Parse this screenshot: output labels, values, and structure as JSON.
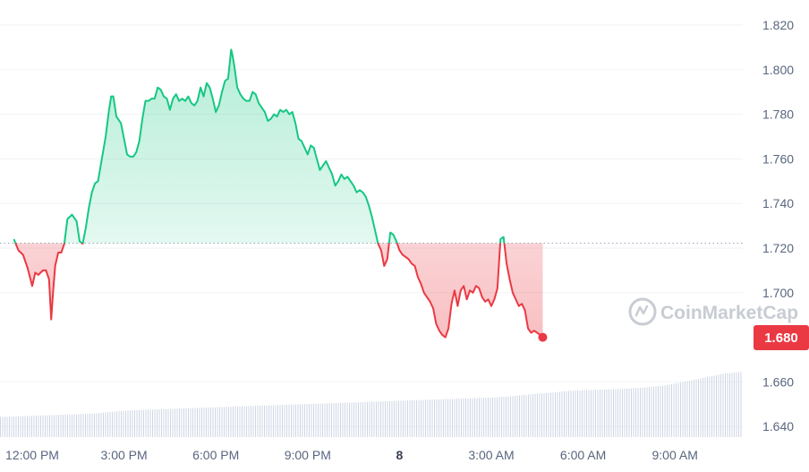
{
  "brand": "CoinMarketCap",
  "colors": {
    "up": "#16c784",
    "down": "#ea3943",
    "grid": "#eff2f5",
    "axis_text": "#58667e",
    "volume": "#cfd6e4"
  },
  "chart_data": {
    "type": "area",
    "baseline": 1.7222,
    "current_price_label": "1.680",
    "ylim": [
      1.632,
      1.83
    ],
    "y_ticks": [
      {
        "value": 1.82,
        "label": "1.820"
      },
      {
        "value": 1.8,
        "label": "1.800"
      },
      {
        "value": 1.78,
        "label": "1.780"
      },
      {
        "value": 1.76,
        "label": "1.760"
      },
      {
        "value": 1.74,
        "label": "1.740"
      },
      {
        "value": 1.72,
        "label": "1.720"
      },
      {
        "value": 1.7,
        "label": "1.700"
      },
      {
        "value": 1.66,
        "label": "1.660"
      },
      {
        "value": 1.64,
        "label": "1.640"
      }
    ],
    "x_ticks": [
      {
        "hour": 0,
        "label": "12:00 PM"
      },
      {
        "hour": 3,
        "label": "3:00 PM"
      },
      {
        "hour": 6,
        "label": "6:00 PM"
      },
      {
        "hour": 9,
        "label": "9:00 PM"
      },
      {
        "hour": 12,
        "label": "8",
        "bold": true
      },
      {
        "hour": 15,
        "label": "3:00 AM"
      },
      {
        "hour": 18,
        "label": "6:00 AM"
      },
      {
        "hour": 21,
        "label": "9:00 AM"
      }
    ],
    "series": [
      {
        "points": [
          [
            -0.6,
            1.724
          ],
          [
            -0.45,
            1.719
          ],
          [
            -0.3,
            1.717
          ],
          [
            -0.15,
            1.711
          ],
          [
            0.0,
            1.703
          ],
          [
            0.1,
            1.709
          ],
          [
            0.2,
            1.708
          ],
          [
            0.35,
            1.71
          ],
          [
            0.45,
            1.71
          ],
          [
            0.55,
            1.706
          ],
          [
            0.62,
            1.688
          ],
          [
            0.68,
            1.7
          ],
          [
            0.75,
            1.712
          ],
          [
            0.85,
            1.718
          ],
          [
            0.95,
            1.718
          ],
          [
            1.05,
            1.722
          ],
          [
            1.15,
            1.733
          ],
          [
            1.3,
            1.735
          ],
          [
            1.45,
            1.732
          ],
          [
            1.55,
            1.723
          ],
          [
            1.65,
            1.722
          ],
          [
            1.75,
            1.729
          ],
          [
            1.85,
            1.738
          ],
          [
            1.95,
            1.745
          ],
          [
            2.05,
            1.749
          ],
          [
            2.15,
            1.75
          ],
          [
            2.25,
            1.758
          ],
          [
            2.4,
            1.77
          ],
          [
            2.5,
            1.781
          ],
          [
            2.58,
            1.788
          ],
          [
            2.65,
            1.788
          ],
          [
            2.75,
            1.779
          ],
          [
            2.9,
            1.776
          ],
          [
            3.0,
            1.769
          ],
          [
            3.1,
            1.762
          ],
          [
            3.2,
            1.761
          ],
          [
            3.3,
            1.761
          ],
          [
            3.4,
            1.763
          ],
          [
            3.5,
            1.768
          ],
          [
            3.6,
            1.778
          ],
          [
            3.7,
            1.786
          ],
          [
            3.8,
            1.786
          ],
          [
            3.9,
            1.787
          ],
          [
            4.0,
            1.787
          ],
          [
            4.1,
            1.792
          ],
          [
            4.2,
            1.791
          ],
          [
            4.3,
            1.788
          ],
          [
            4.4,
            1.787
          ],
          [
            4.5,
            1.782
          ],
          [
            4.6,
            1.787
          ],
          [
            4.7,
            1.789
          ],
          [
            4.8,
            1.786
          ],
          [
            4.9,
            1.787
          ],
          [
            5.0,
            1.786
          ],
          [
            5.1,
            1.788
          ],
          [
            5.2,
            1.785
          ],
          [
            5.3,
            1.784
          ],
          [
            5.4,
            1.786
          ],
          [
            5.5,
            1.792
          ],
          [
            5.6,
            1.788
          ],
          [
            5.7,
            1.794
          ],
          [
            5.8,
            1.792
          ],
          [
            5.9,
            1.787
          ],
          [
            6.0,
            1.781
          ],
          [
            6.1,
            1.784
          ],
          [
            6.2,
            1.79
          ],
          [
            6.3,
            1.795
          ],
          [
            6.4,
            1.796
          ],
          [
            6.5,
            1.809
          ],
          [
            6.55,
            1.806
          ],
          [
            6.6,
            1.802
          ],
          [
            6.7,
            1.792
          ],
          [
            6.8,
            1.789
          ],
          [
            6.9,
            1.787
          ],
          [
            7.0,
            1.786
          ],
          [
            7.1,
            1.786
          ],
          [
            7.2,
            1.79
          ],
          [
            7.3,
            1.789
          ],
          [
            7.4,
            1.785
          ],
          [
            7.5,
            1.783
          ],
          [
            7.6,
            1.781
          ],
          [
            7.7,
            1.777
          ],
          [
            7.8,
            1.778
          ],
          [
            7.9,
            1.78
          ],
          [
            8.0,
            1.779
          ],
          [
            8.1,
            1.782
          ],
          [
            8.2,
            1.781
          ],
          [
            8.3,
            1.782
          ],
          [
            8.4,
            1.78
          ],
          [
            8.5,
            1.781
          ],
          [
            8.6,
            1.776
          ],
          [
            8.7,
            1.769
          ],
          [
            8.8,
            1.768
          ],
          [
            8.9,
            1.765
          ],
          [
            9.0,
            1.762
          ],
          [
            9.1,
            1.766
          ],
          [
            9.2,
            1.765
          ],
          [
            9.3,
            1.76
          ],
          [
            9.4,
            1.755
          ],
          [
            9.5,
            1.757
          ],
          [
            9.6,
            1.759
          ],
          [
            9.7,
            1.756
          ],
          [
            9.8,
            1.753
          ],
          [
            9.9,
            1.748
          ],
          [
            10.0,
            1.75
          ],
          [
            10.1,
            1.753
          ],
          [
            10.2,
            1.751
          ],
          [
            10.3,
            1.752
          ],
          [
            10.4,
            1.75
          ],
          [
            10.5,
            1.748
          ],
          [
            10.6,
            1.745
          ],
          [
            10.7,
            1.746
          ],
          [
            10.8,
            1.745
          ],
          [
            10.9,
            1.743
          ],
          [
            11.0,
            1.739
          ],
          [
            11.1,
            1.734
          ],
          [
            11.2,
            1.728
          ],
          [
            11.3,
            1.722
          ],
          [
            11.4,
            1.719
          ],
          [
            11.5,
            1.712
          ],
          [
            11.6,
            1.715
          ],
          [
            11.7,
            1.727
          ],
          [
            11.8,
            1.726
          ],
          [
            11.9,
            1.723
          ],
          [
            12.0,
            1.719
          ],
          [
            12.1,
            1.717
          ],
          [
            12.2,
            1.716
          ],
          [
            12.3,
            1.715
          ],
          [
            12.4,
            1.713
          ],
          [
            12.5,
            1.712
          ],
          [
            12.6,
            1.707
          ],
          [
            12.7,
            1.704
          ],
          [
            12.8,
            1.7
          ],
          [
            12.9,
            1.698
          ],
          [
            13.0,
            1.696
          ],
          [
            13.1,
            1.693
          ],
          [
            13.2,
            1.686
          ],
          [
            13.3,
            1.683
          ],
          [
            13.4,
            1.681
          ],
          [
            13.5,
            1.68
          ],
          [
            13.6,
            1.684
          ],
          [
            13.7,
            1.695
          ],
          [
            13.8,
            1.701
          ],
          [
            13.9,
            1.694
          ],
          [
            14.0,
            1.701
          ],
          [
            14.1,
            1.703
          ],
          [
            14.2,
            1.697
          ],
          [
            14.3,
            1.701
          ],
          [
            14.4,
            1.7
          ],
          [
            14.5,
            1.703
          ],
          [
            14.6,
            1.702
          ],
          [
            14.7,
            1.698
          ],
          [
            14.8,
            1.696
          ],
          [
            14.9,
            1.697
          ],
          [
            15.0,
            1.694
          ],
          [
            15.1,
            1.697
          ],
          [
            15.2,
            1.702
          ],
          [
            15.3,
            1.724
          ],
          [
            15.4,
            1.725
          ],
          [
            15.5,
            1.713
          ],
          [
            15.6,
            1.706
          ],
          [
            15.7,
            1.7
          ],
          [
            15.8,
            1.697
          ],
          [
            15.9,
            1.694
          ],
          [
            16.0,
            1.695
          ],
          [
            16.1,
            1.692
          ],
          [
            16.2,
            1.684
          ],
          [
            16.3,
            1.682
          ],
          [
            16.4,
            1.683
          ],
          [
            16.5,
            1.682
          ],
          [
            16.6,
            1.681
          ],
          [
            16.68,
            1.68
          ]
        ]
      }
    ],
    "volume": {
      "values": [
        0.3,
        0.31,
        0.32,
        0.33,
        0.34,
        0.35,
        0.38,
        0.4,
        0.41,
        0.42,
        0.43,
        0.44,
        0.45,
        0.46,
        0.47,
        0.48,
        0.49,
        0.5,
        0.51,
        0.52,
        0.53,
        0.54,
        0.55,
        0.56,
        0.57,
        0.58,
        0.59,
        0.61,
        0.64,
        0.66,
        0.69,
        0.7,
        0.71,
        0.72,
        0.74,
        0.77,
        0.82,
        0.88,
        0.94,
        0.97
      ]
    }
  }
}
